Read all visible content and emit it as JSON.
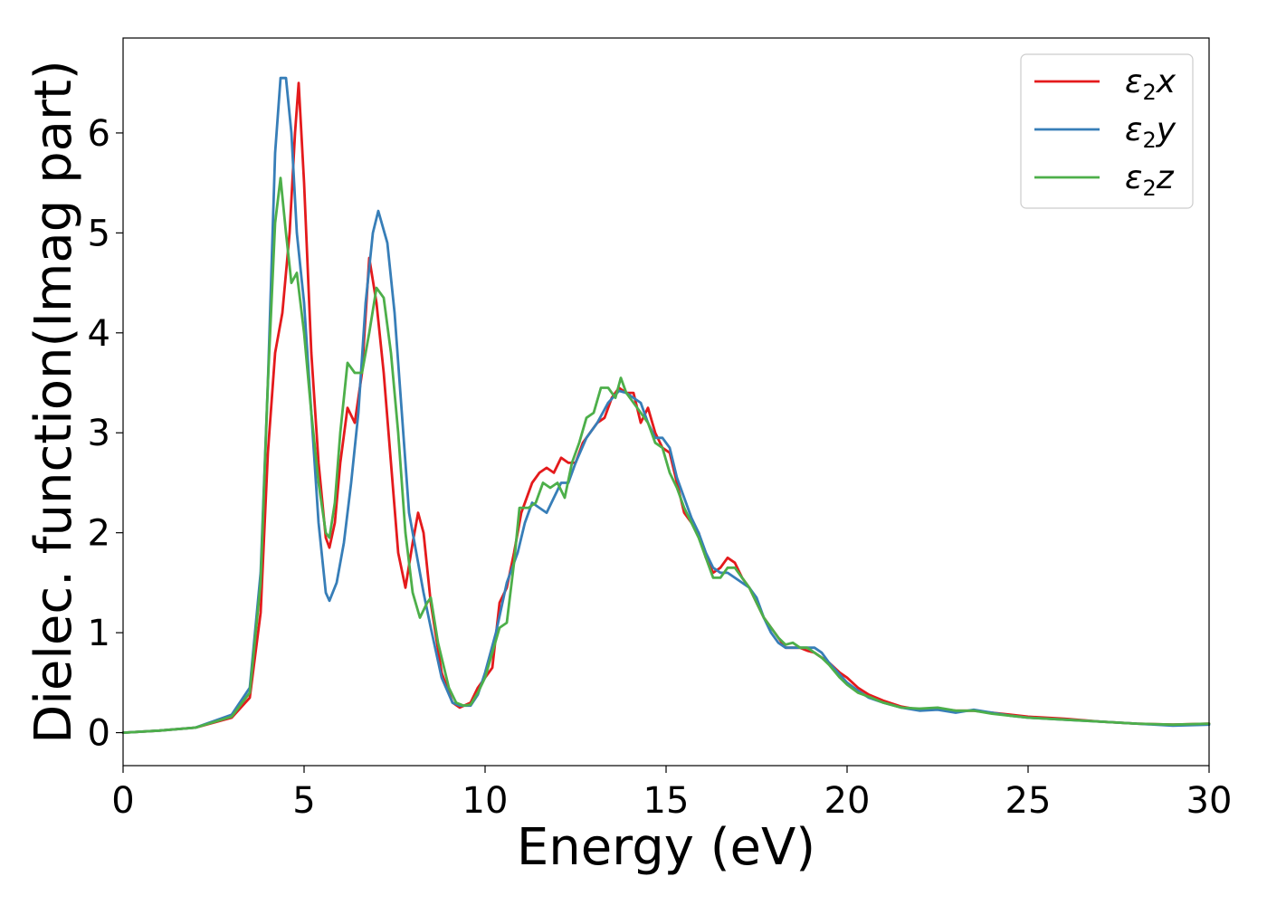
{
  "chart_data": {
    "type": "line",
    "title": "",
    "xlabel": "Energy (eV)",
    "ylabel": "Dielec. function(Imag part)",
    "xlim": [
      0,
      30
    ],
    "ylim": [
      -0.33,
      6.95
    ],
    "xticks": [
      0,
      5,
      10,
      15,
      20,
      25,
      30
    ],
    "yticks": [
      0,
      1,
      2,
      3,
      4,
      5,
      6
    ],
    "grid": false,
    "legend_position": "top-right",
    "series": [
      {
        "name": "ε2x",
        "legend_base": "ε",
        "legend_sub": "2",
        "legend_suffix": "x",
        "color": "#e41a1c",
        "points": [
          [
            0,
            0
          ],
          [
            1,
            0.02
          ],
          [
            2,
            0.05
          ],
          [
            3,
            0.15
          ],
          [
            3.5,
            0.35
          ],
          [
            3.8,
            1.2
          ],
          [
            4,
            2.8
          ],
          [
            4.2,
            3.8
          ],
          [
            4.4,
            4.2
          ],
          [
            4.6,
            5.0
          ],
          [
            4.75,
            6.0
          ],
          [
            4.85,
            6.5
          ],
          [
            5.0,
            5.5
          ],
          [
            5.2,
            3.8
          ],
          [
            5.4,
            2.7
          ],
          [
            5.6,
            1.95
          ],
          [
            5.7,
            1.85
          ],
          [
            5.85,
            2.1
          ],
          [
            6.0,
            2.7
          ],
          [
            6.2,
            3.25
          ],
          [
            6.4,
            3.1
          ],
          [
            6.6,
            3.6
          ],
          [
            6.8,
            4.75
          ],
          [
            7.0,
            4.3
          ],
          [
            7.2,
            3.6
          ],
          [
            7.4,
            2.7
          ],
          [
            7.6,
            1.8
          ],
          [
            7.8,
            1.45
          ],
          [
            8.0,
            1.9
          ],
          [
            8.15,
            2.2
          ],
          [
            8.3,
            2.0
          ],
          [
            8.5,
            1.3
          ],
          [
            8.8,
            0.6
          ],
          [
            9.1,
            0.3
          ],
          [
            9.3,
            0.25
          ],
          [
            9.6,
            0.3
          ],
          [
            9.8,
            0.45
          ],
          [
            10.0,
            0.55
          ],
          [
            10.2,
            0.65
          ],
          [
            10.4,
            1.3
          ],
          [
            10.6,
            1.45
          ],
          [
            10.8,
            1.8
          ],
          [
            11.0,
            2.2
          ],
          [
            11.3,
            2.5
          ],
          [
            11.5,
            2.6
          ],
          [
            11.7,
            2.65
          ],
          [
            11.9,
            2.6
          ],
          [
            12.1,
            2.75
          ],
          [
            12.3,
            2.7
          ],
          [
            12.5,
            2.7
          ],
          [
            12.7,
            2.9
          ],
          [
            12.9,
            3.0
          ],
          [
            13.1,
            3.1
          ],
          [
            13.3,
            3.15
          ],
          [
            13.5,
            3.35
          ],
          [
            13.7,
            3.45
          ],
          [
            13.9,
            3.4
          ],
          [
            14.1,
            3.4
          ],
          [
            14.3,
            3.1
          ],
          [
            14.5,
            3.25
          ],
          [
            14.7,
            3.0
          ],
          [
            14.9,
            2.85
          ],
          [
            15.1,
            2.8
          ],
          [
            15.3,
            2.5
          ],
          [
            15.5,
            2.2
          ],
          [
            15.7,
            2.1
          ],
          [
            15.9,
            2.0
          ],
          [
            16.1,
            1.75
          ],
          [
            16.3,
            1.6
          ],
          [
            16.5,
            1.65
          ],
          [
            16.7,
            1.75
          ],
          [
            16.9,
            1.7
          ],
          [
            17.1,
            1.55
          ],
          [
            17.3,
            1.45
          ],
          [
            17.5,
            1.3
          ],
          [
            17.7,
            1.15
          ],
          [
            17.9,
            1.05
          ],
          [
            18.1,
            0.95
          ],
          [
            18.3,
            0.85
          ],
          [
            18.5,
            0.85
          ],
          [
            18.7,
            0.85
          ],
          [
            18.9,
            0.82
          ],
          [
            19.1,
            0.8
          ],
          [
            19.3,
            0.75
          ],
          [
            19.5,
            0.7
          ],
          [
            19.8,
            0.6
          ],
          [
            20.0,
            0.55
          ],
          [
            20.3,
            0.45
          ],
          [
            20.6,
            0.38
          ],
          [
            21.0,
            0.32
          ],
          [
            21.5,
            0.26
          ],
          [
            22.0,
            0.23
          ],
          [
            22.5,
            0.24
          ],
          [
            23.0,
            0.22
          ],
          [
            23.5,
            0.22
          ],
          [
            24.0,
            0.2
          ],
          [
            24.5,
            0.18
          ],
          [
            25.0,
            0.16
          ],
          [
            26.0,
            0.14
          ],
          [
            27.0,
            0.11
          ],
          [
            28.0,
            0.09
          ],
          [
            29.0,
            0.08
          ],
          [
            30.0,
            0.09
          ]
        ]
      },
      {
        "name": "ε2y",
        "legend_base": "ε",
        "legend_sub": "2",
        "legend_suffix": "y",
        "color": "#377eb8",
        "points": [
          [
            0,
            0
          ],
          [
            1,
            0.02
          ],
          [
            2,
            0.05
          ],
          [
            3,
            0.18
          ],
          [
            3.5,
            0.45
          ],
          [
            3.8,
            1.6
          ],
          [
            4.0,
            3.5
          ],
          [
            4.2,
            5.8
          ],
          [
            4.35,
            6.55
          ],
          [
            4.5,
            6.55
          ],
          [
            4.65,
            6.0
          ],
          [
            4.8,
            5.0
          ],
          [
            5.0,
            4.3
          ],
          [
            5.2,
            3.2
          ],
          [
            5.4,
            2.1
          ],
          [
            5.6,
            1.4
          ],
          [
            5.7,
            1.32
          ],
          [
            5.9,
            1.5
          ],
          [
            6.1,
            1.9
          ],
          [
            6.3,
            2.5
          ],
          [
            6.5,
            3.2
          ],
          [
            6.7,
            4.3
          ],
          [
            6.9,
            5.0
          ],
          [
            7.05,
            5.22
          ],
          [
            7.3,
            4.9
          ],
          [
            7.5,
            4.2
          ],
          [
            7.7,
            3.2
          ],
          [
            7.9,
            2.2
          ],
          [
            8.1,
            1.8
          ],
          [
            8.3,
            1.4
          ],
          [
            8.5,
            1.05
          ],
          [
            8.8,
            0.55
          ],
          [
            9.1,
            0.3
          ],
          [
            9.3,
            0.27
          ],
          [
            9.6,
            0.27
          ],
          [
            9.8,
            0.38
          ],
          [
            10.0,
            0.6
          ],
          [
            10.3,
            1.0
          ],
          [
            10.6,
            1.5
          ],
          [
            10.9,
            1.8
          ],
          [
            11.1,
            2.1
          ],
          [
            11.3,
            2.3
          ],
          [
            11.5,
            2.25
          ],
          [
            11.7,
            2.2
          ],
          [
            11.9,
            2.35
          ],
          [
            12.1,
            2.5
          ],
          [
            12.3,
            2.5
          ],
          [
            12.5,
            2.7
          ],
          [
            12.8,
            2.95
          ],
          [
            13.1,
            3.1
          ],
          [
            13.4,
            3.3
          ],
          [
            13.7,
            3.42
          ],
          [
            13.9,
            3.4
          ],
          [
            14.1,
            3.35
          ],
          [
            14.3,
            3.3
          ],
          [
            14.5,
            3.1
          ],
          [
            14.7,
            2.95
          ],
          [
            14.9,
            2.95
          ],
          [
            15.1,
            2.85
          ],
          [
            15.3,
            2.55
          ],
          [
            15.5,
            2.35
          ],
          [
            15.7,
            2.15
          ],
          [
            15.9,
            2.0
          ],
          [
            16.1,
            1.8
          ],
          [
            16.3,
            1.65
          ],
          [
            16.5,
            1.6
          ],
          [
            16.7,
            1.6
          ],
          [
            16.9,
            1.55
          ],
          [
            17.1,
            1.5
          ],
          [
            17.3,
            1.45
          ],
          [
            17.5,
            1.35
          ],
          [
            17.7,
            1.15
          ],
          [
            17.9,
            1.0
          ],
          [
            18.1,
            0.9
          ],
          [
            18.3,
            0.85
          ],
          [
            18.5,
            0.85
          ],
          [
            18.7,
            0.85
          ],
          [
            18.9,
            0.85
          ],
          [
            19.1,
            0.85
          ],
          [
            19.3,
            0.8
          ],
          [
            19.5,
            0.7
          ],
          [
            19.8,
            0.58
          ],
          [
            20.0,
            0.5
          ],
          [
            20.3,
            0.42
          ],
          [
            20.6,
            0.35
          ],
          [
            21.0,
            0.3
          ],
          [
            21.5,
            0.25
          ],
          [
            22.0,
            0.22
          ],
          [
            22.5,
            0.23
          ],
          [
            23.0,
            0.2
          ],
          [
            23.5,
            0.23
          ],
          [
            24.0,
            0.2
          ],
          [
            24.5,
            0.17
          ],
          [
            25.0,
            0.15
          ],
          [
            26.0,
            0.13
          ],
          [
            27.0,
            0.11
          ],
          [
            28.0,
            0.09
          ],
          [
            29.0,
            0.07
          ],
          [
            30.0,
            0.08
          ]
        ]
      },
      {
        "name": "ε2z",
        "legend_base": "ε",
        "legend_sub": "2",
        "legend_suffix": "z",
        "color": "#4daf4a",
        "points": [
          [
            0,
            0
          ],
          [
            1,
            0.02
          ],
          [
            2,
            0.05
          ],
          [
            3,
            0.16
          ],
          [
            3.5,
            0.4
          ],
          [
            3.8,
            1.5
          ],
          [
            4.0,
            3.5
          ],
          [
            4.2,
            5.1
          ],
          [
            4.35,
            5.55
          ],
          [
            4.5,
            5.0
          ],
          [
            4.65,
            4.5
          ],
          [
            4.8,
            4.6
          ],
          [
            5.0,
            4.0
          ],
          [
            5.2,
            3.2
          ],
          [
            5.4,
            2.5
          ],
          [
            5.6,
            2.0
          ],
          [
            5.7,
            1.95
          ],
          [
            5.85,
            2.3
          ],
          [
            6.0,
            3.0
          ],
          [
            6.2,
            3.7
          ],
          [
            6.4,
            3.6
          ],
          [
            6.6,
            3.6
          ],
          [
            6.8,
            4.0
          ],
          [
            7.0,
            4.45
          ],
          [
            7.2,
            4.35
          ],
          [
            7.4,
            3.8
          ],
          [
            7.6,
            3.0
          ],
          [
            7.8,
            2.0
          ],
          [
            8.0,
            1.4
          ],
          [
            8.2,
            1.15
          ],
          [
            8.4,
            1.3
          ],
          [
            8.5,
            1.35
          ],
          [
            8.7,
            0.9
          ],
          [
            9.0,
            0.45
          ],
          [
            9.2,
            0.3
          ],
          [
            9.4,
            0.27
          ],
          [
            9.6,
            0.28
          ],
          [
            9.8,
            0.4
          ],
          [
            10.0,
            0.55
          ],
          [
            10.2,
            0.8
          ],
          [
            10.4,
            1.05
          ],
          [
            10.6,
            1.1
          ],
          [
            10.8,
            1.7
          ],
          [
            10.95,
            2.25
          ],
          [
            11.2,
            2.25
          ],
          [
            11.4,
            2.3
          ],
          [
            11.6,
            2.5
          ],
          [
            11.8,
            2.45
          ],
          [
            12.0,
            2.5
          ],
          [
            12.2,
            2.35
          ],
          [
            12.4,
            2.7
          ],
          [
            12.6,
            2.9
          ],
          [
            12.8,
            3.15
          ],
          [
            13.0,
            3.2
          ],
          [
            13.2,
            3.45
          ],
          [
            13.4,
            3.45
          ],
          [
            13.6,
            3.35
          ],
          [
            13.75,
            3.55
          ],
          [
            13.9,
            3.4
          ],
          [
            14.1,
            3.3
          ],
          [
            14.3,
            3.2
          ],
          [
            14.5,
            3.1
          ],
          [
            14.7,
            2.9
          ],
          [
            14.9,
            2.85
          ],
          [
            15.1,
            2.6
          ],
          [
            15.3,
            2.45
          ],
          [
            15.5,
            2.25
          ],
          [
            15.7,
            2.1
          ],
          [
            15.9,
            1.95
          ],
          [
            16.1,
            1.75
          ],
          [
            16.3,
            1.55
          ],
          [
            16.5,
            1.55
          ],
          [
            16.7,
            1.65
          ],
          [
            16.9,
            1.65
          ],
          [
            17.1,
            1.55
          ],
          [
            17.3,
            1.45
          ],
          [
            17.5,
            1.3
          ],
          [
            17.7,
            1.15
          ],
          [
            17.9,
            1.05
          ],
          [
            18.1,
            0.95
          ],
          [
            18.3,
            0.88
          ],
          [
            18.5,
            0.9
          ],
          [
            18.7,
            0.85
          ],
          [
            18.9,
            0.85
          ],
          [
            19.1,
            0.8
          ],
          [
            19.3,
            0.75
          ],
          [
            19.5,
            0.68
          ],
          [
            19.8,
            0.55
          ],
          [
            20.0,
            0.48
          ],
          [
            20.3,
            0.4
          ],
          [
            20.6,
            0.36
          ],
          [
            21.0,
            0.3
          ],
          [
            21.5,
            0.25
          ],
          [
            22.0,
            0.24
          ],
          [
            22.5,
            0.25
          ],
          [
            23.0,
            0.22
          ],
          [
            23.5,
            0.22
          ],
          [
            24.0,
            0.19
          ],
          [
            24.5,
            0.17
          ],
          [
            25.0,
            0.15
          ],
          [
            26.0,
            0.13
          ],
          [
            27.0,
            0.11
          ],
          [
            28.0,
            0.09
          ],
          [
            29.0,
            0.08
          ],
          [
            30.0,
            0.09
          ]
        ]
      }
    ]
  }
}
